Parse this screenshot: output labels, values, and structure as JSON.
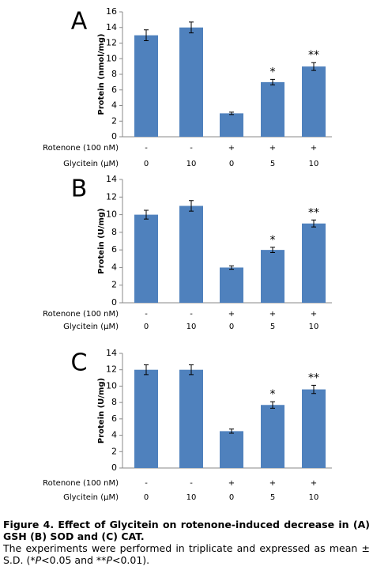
{
  "chart_data": [
    {
      "type": "bar",
      "panel": "A",
      "y_label": "Protein (nmol/mg)",
      "ylim": [
        0,
        16
      ],
      "yticks": [
        0,
        2,
        4,
        6,
        8,
        10,
        12,
        14,
        16
      ],
      "series": [
        {
          "color": "#4f81bd",
          "values": [
            13,
            14,
            3,
            7,
            9
          ],
          "errors": [
            0.7,
            0.7,
            0.15,
            0.35,
            0.5
          ],
          "annotations": [
            null,
            null,
            null,
            "*",
            "**"
          ]
        }
      ],
      "conditions": [
        {
          "label": "Rotenone (100 nM)",
          "values": [
            "-",
            "-",
            "+",
            "+",
            "+"
          ]
        },
        {
          "label": "Glycitein (µM)",
          "values": [
            "0",
            "10",
            "0",
            "5",
            "10"
          ]
        }
      ]
    },
    {
      "type": "bar",
      "panel": "B",
      "y_label": "Protein (U/mg)",
      "ylim": [
        0,
        14
      ],
      "yticks": [
        0,
        2,
        4,
        6,
        8,
        10,
        12,
        14
      ],
      "series": [
        {
          "color": "#4f81bd",
          "values": [
            10,
            11,
            4,
            6,
            9
          ],
          "errors": [
            0.5,
            0.6,
            0.2,
            0.3,
            0.4
          ],
          "annotations": [
            null,
            null,
            null,
            "*",
            "**"
          ]
        }
      ],
      "conditions": [
        {
          "label": "Rotenone (100 nM)",
          "values": [
            "-",
            "-",
            "+",
            "+",
            "+"
          ]
        },
        {
          "label": "Glycitein (µM)",
          "values": [
            "0",
            "10",
            "0",
            "5",
            "10"
          ]
        }
      ]
    },
    {
      "type": "bar",
      "panel": "C",
      "y_label": "Protein (U/mg)",
      "ylim": [
        0,
        14
      ],
      "yticks": [
        0,
        2,
        4,
        6,
        8,
        10,
        12,
        14
      ],
      "series": [
        {
          "color": "#4f81bd",
          "values": [
            12,
            12,
            4.5,
            7.7,
            9.6
          ],
          "errors": [
            0.6,
            0.6,
            0.25,
            0.4,
            0.5
          ],
          "annotations": [
            null,
            null,
            null,
            "*",
            "**"
          ]
        }
      ],
      "conditions": [
        {
          "label": "Rotenone (100 nM)",
          "values": [
            "-",
            "-",
            "+",
            "+",
            "+"
          ]
        },
        {
          "label": "Glycitein (µM)",
          "values": [
            "0",
            "10",
            "0",
            "5",
            "10"
          ]
        }
      ]
    }
  ],
  "caption": {
    "title": "Figure 4. Effect of Glycitein on rotenone-induced decrease in (A) GSH (B) SOD and (C) CAT.",
    "body": [
      "The experiments were performed in triplicate and expressed as mean ± S.D. (*",
      "P",
      "<0.05 and **",
      "P",
      "<0.01)."
    ]
  }
}
